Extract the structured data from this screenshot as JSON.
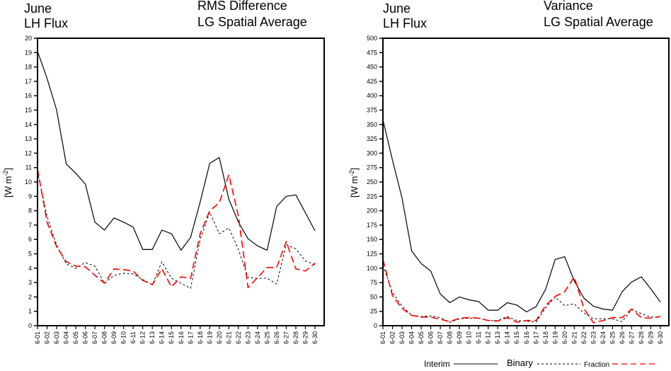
{
  "chart_data": [
    {
      "type": "line",
      "title_left": [
        "June",
        "LH Flux"
      ],
      "title_right": [
        "RMS Difference",
        "LG Spatial Average"
      ],
      "xlabel": "",
      "ylabel": "[W m-2]",
      "ylabel_base": "[W m",
      "ylabel_sup": "-2",
      "ylabel_end": "]",
      "ylim": [
        0,
        20
      ],
      "yticks": [
        0,
        1,
        2,
        3,
        4,
        5,
        6,
        7,
        8,
        9,
        10,
        11,
        12,
        13,
        14,
        15,
        16,
        17,
        18,
        19,
        20
      ],
      "grid": false,
      "categories": [
        "6-01",
        "6-02",
        "6-03",
        "6-04",
        "6-05",
        "6-06",
        "6-07",
        "6-08",
        "6-09",
        "6-10",
        "6-11",
        "6-12",
        "6-13",
        "6-14",
        "6-15",
        "6-16",
        "6-17",
        "6-18",
        "6-19",
        "6-20",
        "6-21",
        "6-22",
        "6-23",
        "6-24",
        "6-25",
        "6-26",
        "6-27",
        "6-28",
        "6-29",
        "6-30"
      ],
      "series": [
        {
          "name": "Interim",
          "style": "solid",
          "color": "#000000",
          "values": [
            19.1,
            17.2,
            15.0,
            11.25,
            10.6,
            9.85,
            7.2,
            6.65,
            7.5,
            7.2,
            6.85,
            5.3,
            5.3,
            6.65,
            6.4,
            5.25,
            6.15,
            8.6,
            11.3,
            11.7,
            8.8,
            7.2,
            6.05,
            5.55,
            5.25,
            8.3,
            9.0,
            9.1,
            7.85,
            6.6
          ]
        },
        {
          "name": "Binary",
          "style": "dotted",
          "color": "#000000",
          "values": [
            10.7,
            7.6,
            5.6,
            4.3,
            4.0,
            4.4,
            4.15,
            2.95,
            3.5,
            3.65,
            3.6,
            3.2,
            2.85,
            4.45,
            3.3,
            2.95,
            2.6,
            6.0,
            7.9,
            6.4,
            6.8,
            5.3,
            3.35,
            3.3,
            3.3,
            2.9,
            5.65,
            5.35,
            4.5,
            4.25
          ]
        },
        {
          "name": "Fraction",
          "style": "dashed",
          "color": "#ff0000",
          "values": [
            10.9,
            7.2,
            5.5,
            4.45,
            4.15,
            4.1,
            3.5,
            2.95,
            3.95,
            3.9,
            3.8,
            3.15,
            2.85,
            3.95,
            2.7,
            3.4,
            3.3,
            6.4,
            8.0,
            8.55,
            10.5,
            7.6,
            2.65,
            3.35,
            4.05,
            4.05,
            5.85,
            3.95,
            3.8,
            4.35
          ]
        }
      ]
    },
    {
      "type": "line",
      "title_left": [
        "June",
        "LH Flux"
      ],
      "title_right": [
        "Variance",
        "LG Spatial Average"
      ],
      "xlabel": "",
      "ylabel": "[W m-2]",
      "ylabel_base": "[W m",
      "ylabel_sup": "-2",
      "ylabel_end": "]",
      "ylim": [
        0,
        500
      ],
      "yticks": [
        0,
        25,
        50,
        75,
        100,
        125,
        150,
        175,
        200,
        225,
        250,
        275,
        300,
        325,
        350,
        375,
        400,
        425,
        450,
        475,
        500
      ],
      "grid": false,
      "categories": [
        "6-01",
        "6-02",
        "6-03",
        "6-04",
        "6-05",
        "6-06",
        "6-07",
        "6-08",
        "6-09",
        "6-10",
        "6-11",
        "6-12",
        "6-13",
        "6-14",
        "6-15",
        "6-16",
        "6-17",
        "6-18",
        "6-19",
        "6-20",
        "6-21",
        "6-22",
        "6-23",
        "6-24",
        "6-25",
        "6-26",
        "6-27",
        "6-28",
        "6-29",
        "6-30"
      ],
      "series": [
        {
          "name": "Interim",
          "style": "solid",
          "color": "#000000",
          "values": [
            358,
            288,
            222,
            130,
            108,
            95,
            55,
            40,
            50,
            45,
            42,
            27,
            27,
            40,
            36,
            24,
            33,
            63,
            115,
            120,
            78,
            48,
            34,
            29,
            27,
            59,
            76,
            85,
            64,
            41
          ]
        },
        {
          "name": "Binary",
          "style": "dotted",
          "color": "#000000",
          "values": [
            105,
            58,
            34,
            18,
            16,
            17,
            14,
            6,
            12,
            13,
            13,
            9,
            9,
            16,
            9,
            8,
            6,
            31,
            50,
            35,
            38,
            22,
            12,
            12,
            12,
            7,
            28,
            21,
            15,
            15
          ]
        },
        {
          "name": "Fraction",
          "style": "dashed",
          "color": "#ff0000",
          "values": [
            115,
            52,
            30,
            18,
            15,
            15,
            11,
            7,
            13,
            14,
            13,
            9,
            8,
            14,
            6,
            9,
            9,
            35,
            51,
            59,
            85,
            30,
            5,
            9,
            14,
            14,
            29,
            14,
            13,
            16
          ]
        }
      ]
    }
  ],
  "legend": {
    "placement": "bottom-right",
    "entries": [
      {
        "label": "Interim",
        "style": "solid",
        "color": "#000000"
      },
      {
        "label": "Binary",
        "style": "dotted",
        "color": "#000000"
      },
      {
        "label": "Fraction",
        "style": "dashed",
        "color": "#ff0000"
      }
    ]
  }
}
